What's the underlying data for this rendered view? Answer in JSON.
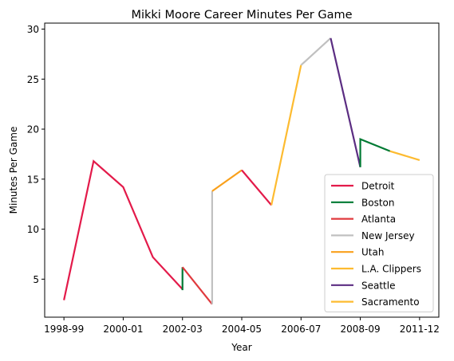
{
  "chart_data": {
    "type": "line",
    "title": "Mikki Moore Career Minutes Per Game",
    "xlabel": "Year",
    "ylabel": "Minutes Per Game",
    "x_ticks": [
      "1998-99",
      "2000-01",
      "2002-03",
      "2004-05",
      "2006-07",
      "2008-09",
      "2011-12"
    ],
    "y_ticks": [
      5,
      10,
      15,
      20,
      25,
      30
    ],
    "xlim": [
      -0.65,
      12.65
    ],
    "ylim": [
      1.2,
      30.6
    ],
    "grid": false,
    "legend_position": "bottom-right",
    "series": [
      {
        "name": "Detroit",
        "color": "#e31a4a",
        "points": [
          [
            0,
            2.9
          ],
          [
            1,
            16.8
          ],
          [
            2,
            14.2
          ],
          [
            3,
            7.2
          ],
          [
            4,
            4.0
          ]
        ]
      },
      {
        "name": "Boston",
        "color": "#007a33",
        "points": [
          [
            4,
            6.2
          ],
          [
            4,
            3.9
          ]
        ]
      },
      {
        "name": "Atlanta",
        "color": "#e03a3e",
        "points": [
          [
            4,
            6.2
          ],
          [
            5,
            2.5
          ]
        ]
      },
      {
        "name": "New Jersey",
        "color": "#c0c0c0",
        "points": [
          [
            5,
            2.5
          ],
          [
            5,
            13.8
          ]
        ]
      },
      {
        "name": "Utah",
        "color": "#f9a01b",
        "points": [
          [
            5,
            13.8
          ],
          [
            6,
            15.9
          ]
        ]
      },
      {
        "name": "Detroit",
        "color": "#e31a4a",
        "points": [
          [
            6,
            15.9
          ],
          [
            7,
            12.4
          ]
        ]
      },
      {
        "name": "L.A. Clippers",
        "color": "#fdbb30",
        "points": [
          [
            7,
            12.4
          ],
          [
            8,
            26.4
          ]
        ]
      },
      {
        "name": "New Jersey",
        "color": "#c0c0c0",
        "points": [
          [
            8,
            26.4
          ],
          [
            9,
            29.1
          ]
        ]
      },
      {
        "name": "Seattle",
        "color": "#5b2d82",
        "points": [
          [
            9,
            29.1
          ],
          [
            10,
            16.2
          ]
        ]
      },
      {
        "name": "Boston",
        "color": "#007a33",
        "points": [
          [
            10,
            16.2
          ],
          [
            10,
            19.0
          ],
          [
            11,
            17.8
          ]
        ]
      },
      {
        "name": "Sacramento",
        "color": "#fdbb30",
        "points": [
          [
            11,
            17.8
          ],
          [
            12,
            16.9
          ]
        ]
      }
    ],
    "legend": [
      {
        "label": "Detroit",
        "color": "#e31a4a"
      },
      {
        "label": "Boston",
        "color": "#007a33"
      },
      {
        "label": "Atlanta",
        "color": "#e03a3e"
      },
      {
        "label": "New Jersey",
        "color": "#c0c0c0"
      },
      {
        "label": "Utah",
        "color": "#f9a01b"
      },
      {
        "label": "L.A. Clippers",
        "color": "#fdbb30"
      },
      {
        "label": "Seattle",
        "color": "#5b2d82"
      },
      {
        "label": "Sacramento",
        "color": "#fdbb30"
      }
    ]
  }
}
